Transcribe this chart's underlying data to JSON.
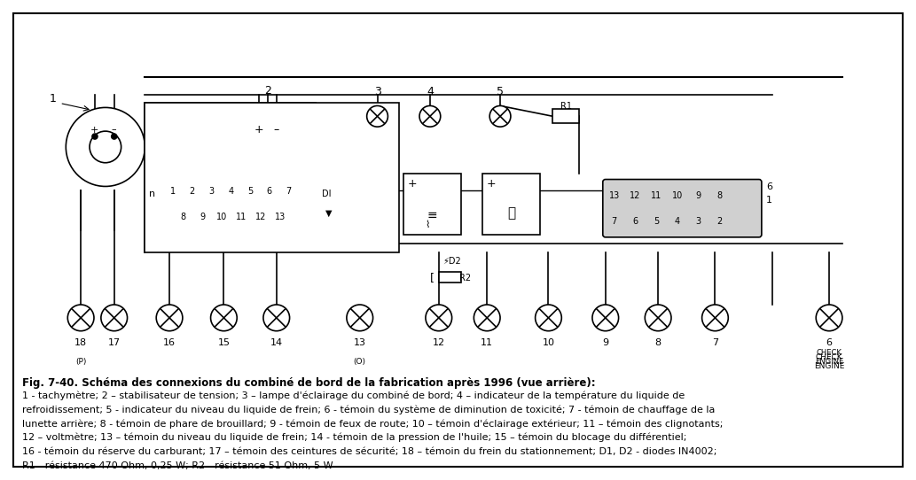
{
  "title": "Fig. 7-40. Schéma des connexions du combiné de bord de la fabrication après 1996 (vue arrière):",
  "caption_lines": [
    "1 - tachymètre; 2 – stabilisateur de tension; 3 – lampe d'éclairage du combiné de bord; 4 – indicateur de la température du liquide de",
    "refroidissement; 5 - indicateur du niveau du liquide de frein; 6 - témoin du système de diminution de toxicité; 7 - témoin de chauffage de la",
    "lunette arrière; 8 - témoin de phare de brouillard; 9 - témoin de feux de route; 10 – témoin d'éclairage extérieur; 11 – témoin des clignotants;",
    "12 – voltmètre; 13 – témoin du niveau du liquide de frein; 14 - témoin de la pression de l'huile; 15 – témoin du blocage du différentiel;",
    "16 - témoin du réserve du carburant; 17 – témoin des ceintures de sécurité; 18 – témoin du frein du stationnement; D1, D2 - diodes IN4002;",
    "R1 - résistance 470 Ohm, 0,25 W; R2 - résistance 51 Ohm, 5 W"
  ],
  "bg_color": "#ffffff",
  "fg_color": "#000000",
  "border_color": "#000000"
}
